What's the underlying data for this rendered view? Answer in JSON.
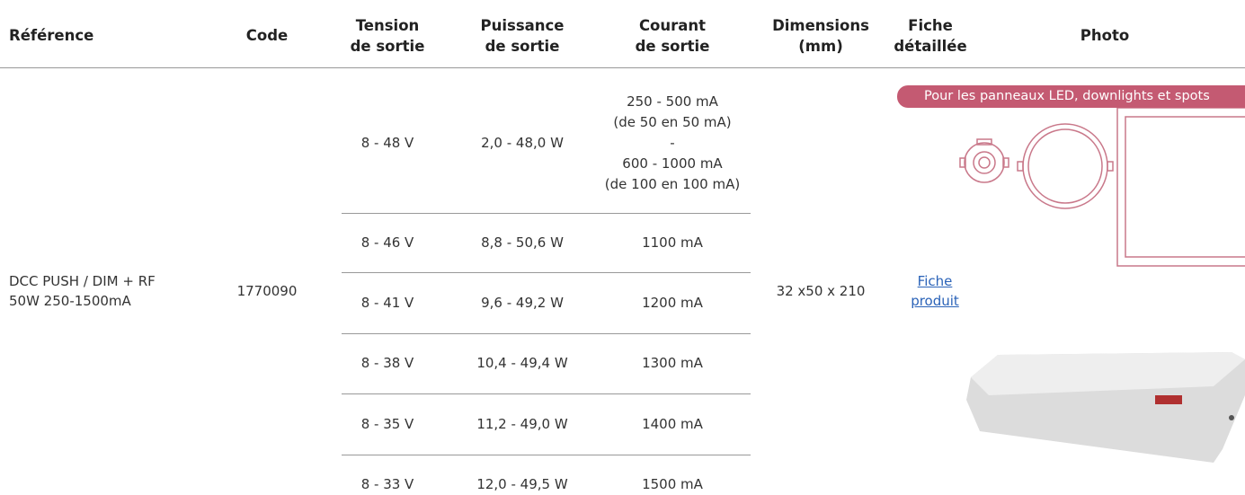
{
  "header": {
    "columns": [
      [
        "Référence"
      ],
      [
        "Code"
      ],
      [
        "Tension",
        "de sortie"
      ],
      [
        "Puissance",
        "de sortie"
      ],
      [
        "Courant",
        "de sortie"
      ],
      [
        "Dimensions",
        "(mm)"
      ],
      [
        "Fiche",
        "détaillée"
      ],
      [
        "Photo"
      ]
    ]
  },
  "table": {
    "reference": [
      "DCC PUSH / DIM + RF",
      "50W 250-1500mA"
    ],
    "code": "1770090",
    "dimensions": "32 x50 x 210",
    "fiche": [
      "Fiche",
      "produit"
    ],
    "photo_caption": "Pour les panneaux LED, downlights et spots",
    "variants": [
      {
        "tension": "8 - 48 V",
        "puissance": "2,0 - 48,0 W",
        "courant": [
          "250 - 500 mA",
          "(de 50 en 50 mA)",
          "-",
          "600 - 1000 mA",
          "(de 100 en 100 mA)"
        ]
      },
      {
        "tension": "8 - 46 V",
        "puissance": "8,8 - 50,6 W",
        "courant": [
          "1100 mA"
        ]
      },
      {
        "tension": "8 - 41 V",
        "puissance": "9,6 - 49,2 W",
        "courant": [
          "1200 mA"
        ]
      },
      {
        "tension": "8 - 38 V",
        "puissance": "10,4 - 49,4 W",
        "courant": [
          "1300 mA"
        ]
      },
      {
        "tension": "8 - 35 V",
        "puissance": "11,2 - 49,0 W",
        "courant": [
          "1400 mA"
        ]
      },
      {
        "tension": "8 - 33 V",
        "puissance": "12,0 - 49,5 W",
        "courant": [
          "1500 mA"
        ]
      }
    ]
  }
}
